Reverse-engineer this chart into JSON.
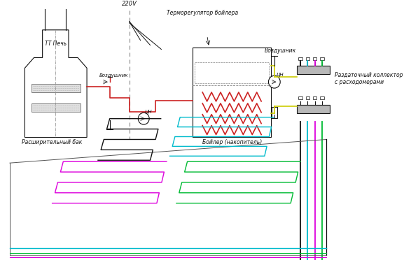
{
  "bg_color": "#ffffff",
  "label_220v": "220V",
  "label_termoreg": "Терморегулятор бойлера",
  "label_vozdushnik1": "Воздушник",
  "label_vozdushnik2": "Воздушник",
  "label_ttn_pech": "ТТ Печь",
  "label_boiler": "Бойлер (накопитель)",
  "label_rasshiritelniy": "Расширительный бак",
  "label_tsn1": "ЦН",
  "label_tsn2": "ЦН",
  "label_razdatochny": "Раздаточный коллектор\nс расходомерами",
  "black": "#111111",
  "gray": "#888888",
  "dark_gray": "#555555",
  "red": "#cc2222",
  "yellow": "#cccc00",
  "cyan": "#00bbcc",
  "magenta": "#dd00dd",
  "green": "#00bb33",
  "floor_colors": [
    "#111111",
    "#00bbcc",
    "#dd00dd",
    "#00bb33"
  ]
}
